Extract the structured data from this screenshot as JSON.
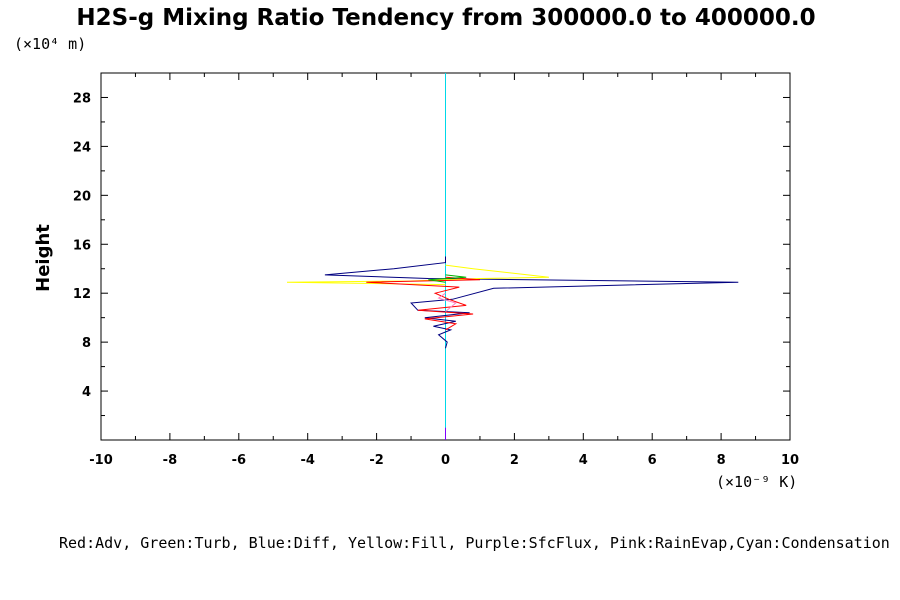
{
  "chart_data": {
    "type": "line",
    "title": "H2S-g Mixing Ratio Tendency from 300000.0 to 400000.0",
    "ylabel": "Height",
    "y_unit": "(×10⁴ m)",
    "x_unit": "(×10⁻⁹ K)",
    "xlim": [
      -10,
      10
    ],
    "ylim": [
      0,
      30
    ],
    "x_ticks": [
      -10,
      -8,
      -6,
      -4,
      -2,
      0,
      2,
      4,
      6,
      8,
      10
    ],
    "y_ticks": [
      4,
      8,
      12,
      16,
      20,
      24,
      28
    ],
    "legend_text": "Red:Adv, Green:Turb, Blue:Diff, Yellow:Fill, Purple:SfcFlux, Pink:RainEvap,Cyan:Condensation",
    "grid": false,
    "series": [
      {
        "name": "Cyan:Condensation",
        "color": "#00d8e8",
        "points": [
          [
            0,
            0
          ],
          [
            0,
            30
          ]
        ]
      },
      {
        "name": "Blue:Diff",
        "color": "#000080",
        "points": [
          [
            0,
            7.5
          ],
          [
            0.05,
            8
          ],
          [
            -0.2,
            8.6
          ],
          [
            0.15,
            9
          ],
          [
            -0.35,
            9.3
          ],
          [
            0.3,
            9.7
          ],
          [
            -0.6,
            10
          ],
          [
            0.7,
            10.4
          ],
          [
            -0.8,
            10.6
          ],
          [
            -1.0,
            11.2
          ],
          [
            0.2,
            11.5
          ],
          [
            1.4,
            12.4
          ],
          [
            8.5,
            12.9
          ],
          [
            -0.5,
            13.2
          ],
          [
            -3.5,
            13.5
          ],
          [
            -1.5,
            14.0
          ],
          [
            0,
            14.5
          ],
          [
            0,
            15
          ]
        ]
      },
      {
        "name": "Yellow:Fill",
        "color": "#ffff00",
        "points": [
          [
            0,
            12.7
          ],
          [
            -4.6,
            12.9
          ],
          [
            -1.0,
            13.0
          ],
          [
            1.0,
            13.2
          ],
          [
            3.0,
            13.3
          ],
          [
            0.8,
            14.0
          ],
          [
            0,
            14.3
          ]
        ]
      },
      {
        "name": "Red:Adv",
        "color": "#ff0000",
        "points": [
          [
            0,
            9.0
          ],
          [
            0.3,
            9.5
          ],
          [
            -0.6,
            9.9
          ],
          [
            0.8,
            10.3
          ],
          [
            -0.8,
            10.6
          ],
          [
            0.6,
            11.0
          ],
          [
            0.1,
            11.5
          ],
          [
            -0.3,
            12.0
          ],
          [
            0.4,
            12.5
          ],
          [
            -2.3,
            12.9
          ],
          [
            1.0,
            13.1
          ],
          [
            0,
            13.3
          ]
        ]
      },
      {
        "name": "Green:Turb",
        "color": "#00b000",
        "points": [
          [
            0,
            12.9
          ],
          [
            -0.5,
            13.1
          ],
          [
            0.6,
            13.3
          ],
          [
            0,
            13.5
          ]
        ]
      },
      {
        "name": "Pink:RainEvap",
        "color": "#ff80c0",
        "points": [
          [
            0,
            10.5
          ],
          [
            0.3,
            11.2
          ],
          [
            -0.2,
            11.6
          ],
          [
            0,
            12.0
          ]
        ]
      },
      {
        "name": "Purple:SfcFlux",
        "color": "#8000ff",
        "points": [
          [
            0,
            0
          ],
          [
            0,
            1
          ]
        ]
      }
    ]
  }
}
